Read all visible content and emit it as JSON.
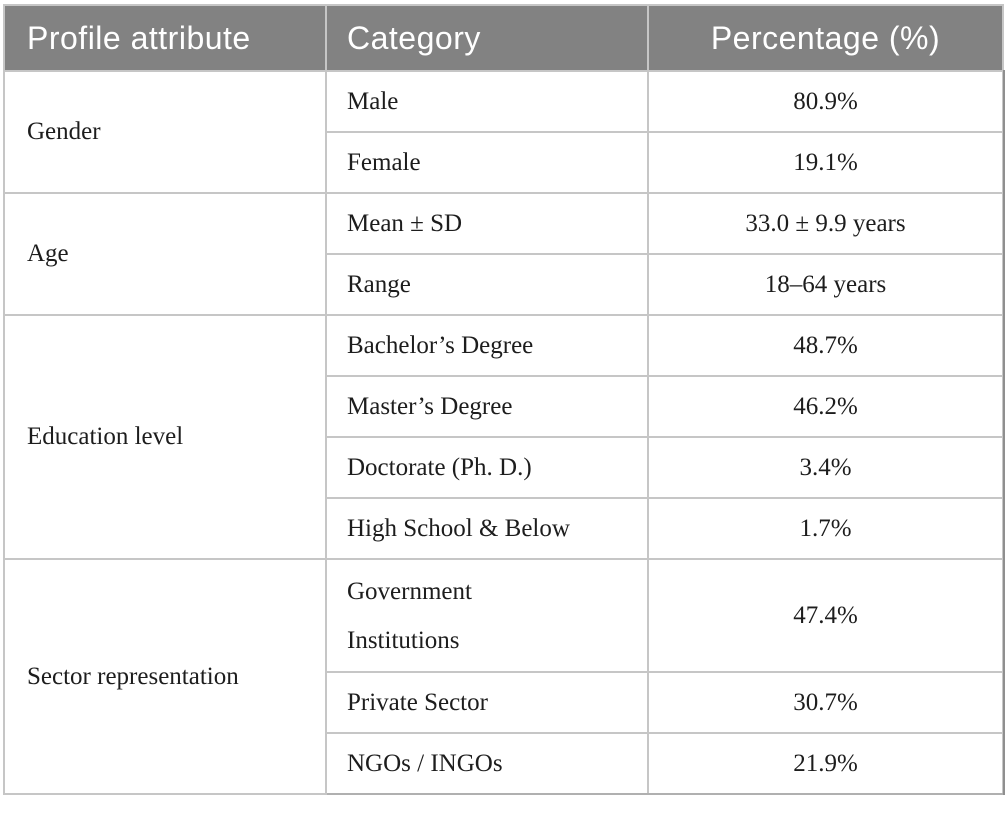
{
  "table": {
    "columns": [
      {
        "label": "Profile attribute"
      },
      {
        "label": "Category"
      },
      {
        "label": "Percentage (%)"
      }
    ],
    "groups": [
      {
        "attribute": "Gender",
        "rows": [
          {
            "category": "Male",
            "value": "80.9%"
          },
          {
            "category": "Female",
            "value": "19.1%"
          }
        ]
      },
      {
        "attribute": "Age",
        "rows": [
          {
            "category": "Mean ± SD",
            "value": "33.0 ± 9.9 years"
          },
          {
            "category": "Range",
            "value": "18–64 years"
          }
        ]
      },
      {
        "attribute": "Education level",
        "rows": [
          {
            "category": "Bachelor’s Degree",
            "value": "48.7%"
          },
          {
            "category": "Master’s Degree",
            "value": "46.2%"
          },
          {
            "category": "Doctorate (Ph. D.)",
            "value": "3.4%"
          },
          {
            "category": "High School & Below",
            "value": "1.7%"
          }
        ]
      },
      {
        "attribute": "Sector representation",
        "rows": [
          {
            "category": "Government\nInstitutions",
            "value": "47.4%"
          },
          {
            "category": "Private Sector",
            "value": "30.7%"
          },
          {
            "category": "NGOs / INGOs",
            "value": "21.9%"
          }
        ]
      }
    ]
  },
  "colors": {
    "header_bg": "#828282",
    "header_text": "#ffffff",
    "body_text": "#1d1d1d",
    "grid_border": "#c6c6c6",
    "bottom_rule": "#b0b0b0",
    "right_edge_line": "#8f8f8f"
  }
}
